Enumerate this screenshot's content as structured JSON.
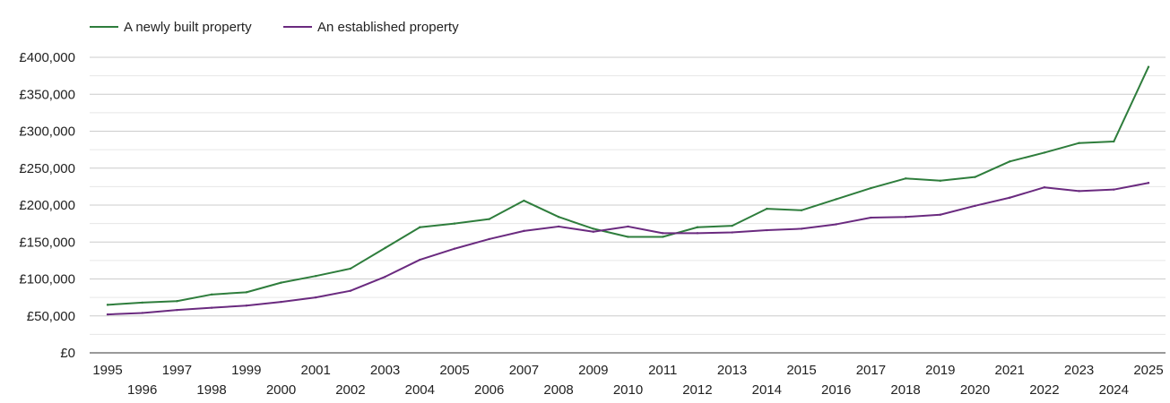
{
  "chart_data": {
    "type": "line",
    "title": "",
    "xlabel": "",
    "ylabel": "",
    "x": [
      1995,
      1996,
      1997,
      1998,
      1999,
      2000,
      2001,
      2002,
      2003,
      2004,
      2005,
      2006,
      2007,
      2008,
      2009,
      2010,
      2011,
      2012,
      2013,
      2014,
      2015,
      2016,
      2017,
      2018,
      2019,
      2020,
      2021,
      2022,
      2023,
      2024,
      2025
    ],
    "x_tick_labels": [
      "1995",
      "1996",
      "1997",
      "1998",
      "1999",
      "2000",
      "2001",
      "2002",
      "2003",
      "2004",
      "2005",
      "2006",
      "2007",
      "2008",
      "2009",
      "2010",
      "2011",
      "2012",
      "2013",
      "2014",
      "2015",
      "2016",
      "2017",
      "2018",
      "2019",
      "2020",
      "2021",
      "2022",
      "2023",
      "2024",
      "2025"
    ],
    "y_ticks": [
      0,
      50000,
      100000,
      150000,
      200000,
      250000,
      300000,
      350000,
      400000
    ],
    "y_tick_labels": [
      "£0",
      "£50,000",
      "£100,000",
      "£150,000",
      "£200,000",
      "£250,000",
      "£300,000",
      "£350,000",
      "£400,000"
    ],
    "ylim": [
      0,
      400000
    ],
    "grid": true,
    "legend_position": "top-left",
    "series": [
      {
        "name": "A newly built property",
        "color": "#2e7d3c",
        "values": [
          65000,
          68000,
          70000,
          79000,
          82000,
          95000,
          104000,
          114000,
          142000,
          170000,
          175000,
          181000,
          206000,
          184000,
          168000,
          157000,
          157000,
          170000,
          172000,
          195000,
          193000,
          208000,
          223000,
          236000,
          233000,
          238000,
          259000,
          271000,
          284000,
          286000,
          387000
        ]
      },
      {
        "name": "An established property",
        "color": "#6a2a7f",
        "values": [
          52000,
          54000,
          58000,
          61000,
          64000,
          69000,
          75000,
          84000,
          103000,
          126000,
          141000,
          154000,
          165000,
          171000,
          164000,
          171000,
          162000,
          162000,
          163000,
          166000,
          168000,
          174000,
          183000,
          184000,
          187000,
          199000,
          210000,
          224000,
          219000,
          221000,
          230000
        ]
      }
    ]
  }
}
